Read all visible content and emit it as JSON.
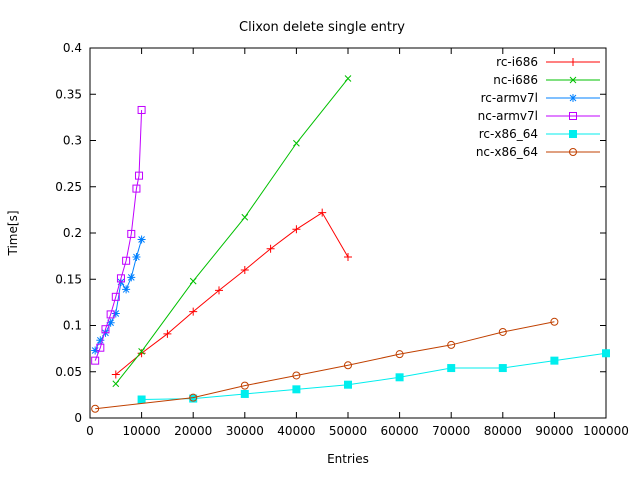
{
  "chart_data": {
    "type": "line",
    "title": "Clixon delete single entry",
    "xlabel": "Entries",
    "ylabel": "Time[s]",
    "xlim": [
      0,
      100000
    ],
    "ylim": [
      0,
      0.4
    ],
    "grid": false,
    "legend_position": "top-right-inside",
    "xticks": {
      "values": [
        0,
        10000,
        20000,
        30000,
        40000,
        50000,
        60000,
        70000,
        80000,
        90000,
        100000
      ],
      "labels": [
        "0",
        "10000",
        "20000",
        "30000",
        "40000",
        "50000",
        "60000",
        "70000",
        "80000",
        "90000",
        "100000"
      ]
    },
    "yticks": {
      "values": [
        0,
        0.05,
        0.1,
        0.15,
        0.2,
        0.25,
        0.3,
        0.35,
        0.4
      ],
      "labels": [
        "0",
        "0.05",
        "0.1",
        "0.15",
        "0.2",
        "0.25",
        "0.3",
        "0.35",
        "0.4"
      ]
    },
    "series": [
      {
        "name": "rc-i686",
        "color": "#ff0000",
        "marker": "plus",
        "x": [
          5000,
          10000,
          15000,
          20000,
          25000,
          30000,
          35000,
          40000,
          45000,
          50000
        ],
        "y": [
          0.047,
          0.07,
          0.091,
          0.115,
          0.138,
          0.16,
          0.183,
          0.204,
          0.222,
          0.174
        ]
      },
      {
        "name": "nc-i686",
        "color": "#00c000",
        "marker": "cross",
        "x": [
          5000,
          10000,
          20000,
          30000,
          40000,
          50000
        ],
        "y": [
          0.037,
          0.072,
          0.148,
          0.217,
          0.297,
          0.367
        ]
      },
      {
        "name": "rc-armv7l",
        "color": "#0080ff",
        "marker": "asterisk",
        "x": [
          1000,
          2000,
          3000,
          4000,
          5000,
          6000,
          7000,
          8000,
          9000,
          10000
        ],
        "y": [
          0.073,
          0.084,
          0.092,
          0.103,
          0.113,
          0.147,
          0.139,
          0.152,
          0.174,
          0.193
        ]
      },
      {
        "name": "nc-armv7l",
        "color": "#c000ff",
        "marker": "square-open",
        "x": [
          1000,
          2000,
          3000,
          4000,
          5000,
          6000,
          7000,
          8000,
          9000,
          9500,
          10000
        ],
        "y": [
          0.062,
          0.076,
          0.096,
          0.112,
          0.131,
          0.151,
          0.17,
          0.199,
          0.248,
          0.262,
          0.333
        ]
      },
      {
        "name": "rc-x86_64",
        "color": "#00eeee",
        "marker": "square-filled",
        "x": [
          10000,
          20000,
          30000,
          40000,
          50000,
          60000,
          70000,
          80000,
          90000,
          100000
        ],
        "y": [
          0.02,
          0.021,
          0.026,
          0.031,
          0.036,
          0.044,
          0.054,
          0.054,
          0.062,
          0.07
        ]
      },
      {
        "name": "nc-x86_64",
        "color": "#c04000",
        "marker": "circle-open",
        "x": [
          1000,
          20000,
          30000,
          40000,
          50000,
          60000,
          70000,
          80000,
          90000
        ],
        "y": [
          0.01,
          0.022,
          0.035,
          0.046,
          0.057,
          0.069,
          0.079,
          0.093,
          0.104
        ]
      }
    ]
  }
}
